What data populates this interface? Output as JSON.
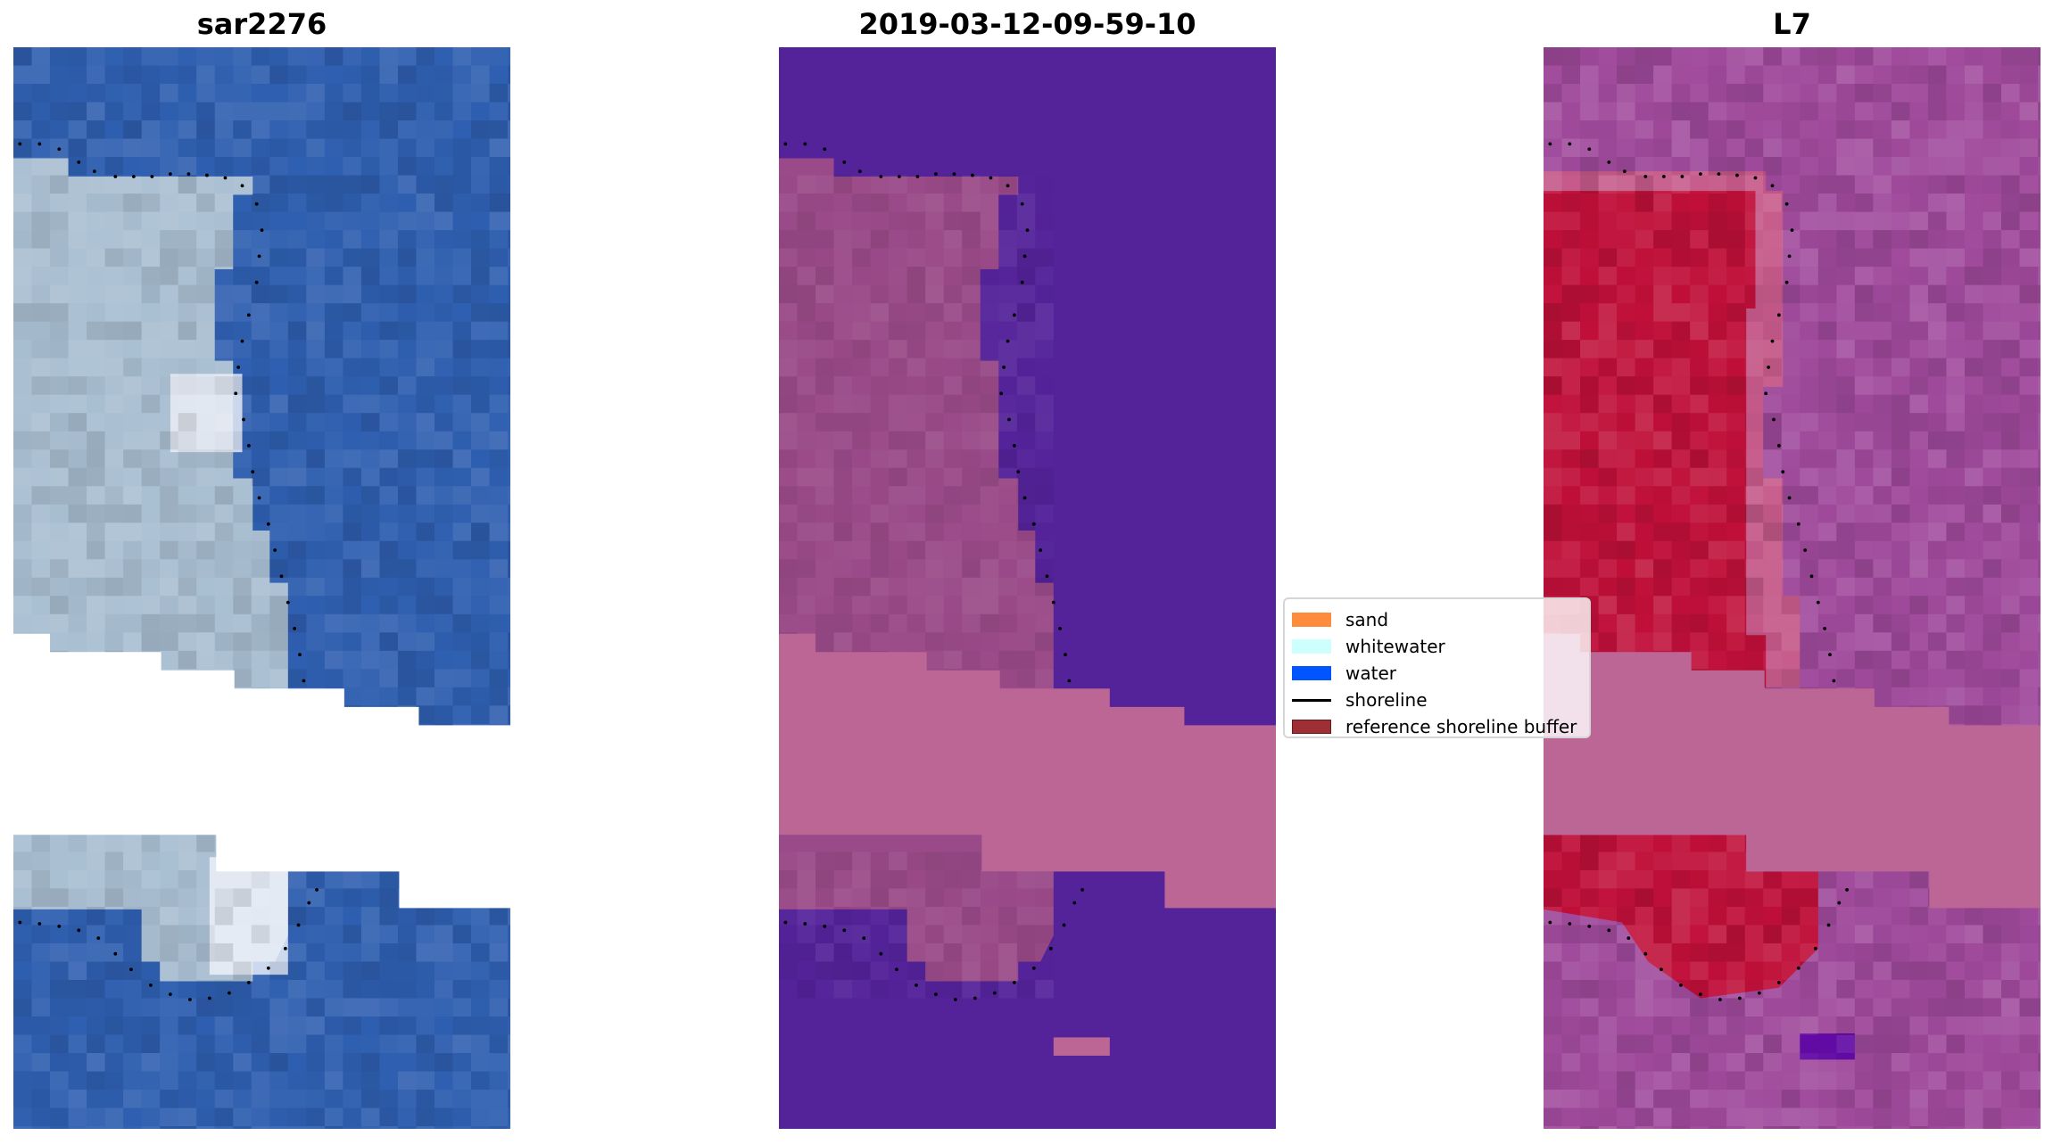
{
  "panels": [
    {
      "title": "sar2276",
      "kind": "rgb"
    },
    {
      "title": "2019-03-12-09-59-10",
      "kind": "classified"
    },
    {
      "title": "L7",
      "kind": "index"
    }
  ],
  "legend": {
    "items": [
      {
        "label": "sand",
        "color": "#ff8c3c",
        "type": "patch"
      },
      {
        "label": "whitewater",
        "color": "#ccfffe",
        "type": "patch"
      },
      {
        "label": "water",
        "color": "#0055ff",
        "type": "patch"
      },
      {
        "label": "shoreline",
        "color": "#000000",
        "type": "line"
      },
      {
        "label": "reference shoreline buffer",
        "color": "#9e2f34",
        "type": "patch"
      }
    ]
  },
  "colors": {
    "rgb_water": "#2f5fb0",
    "rgb_land": "#a9bfd2",
    "class_water": "#54239a",
    "class_land": "#9a4a88",
    "buffer_overlay": "#bc6696",
    "index_bg": "#a04a9c",
    "index_land": "#c0103a"
  }
}
